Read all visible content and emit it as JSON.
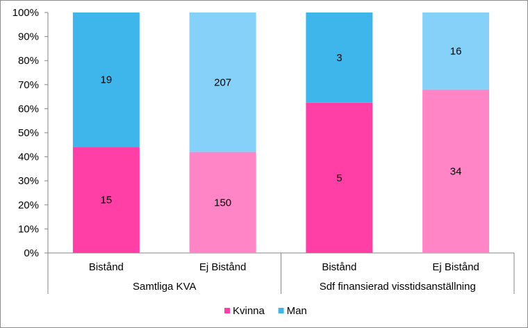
{
  "chart_data": {
    "type": "bar",
    "stacked": "percent",
    "yticks": [
      "0%",
      "10%",
      "20%",
      "30%",
      "40%",
      "50%",
      "60%",
      "70%",
      "80%",
      "90%",
      "100%"
    ],
    "ylim": [
      0,
      100
    ],
    "groups": [
      {
        "label": "Samtliga KVA",
        "categories": [
          {
            "label": "Bistånd",
            "kvinna": 15,
            "man": 19,
            "kvinna_color": "#ff3fa5",
            "man_color": "#3fb6eb"
          },
          {
            "label": "Ej Bistånd",
            "kvinna": 150,
            "man": 207,
            "kvinna_color": "#ff85c6",
            "man_color": "#85d1f9"
          }
        ]
      },
      {
        "label": "Sdf finansierad visstidsanställning",
        "categories": [
          {
            "label": "Bistånd",
            "kvinna": 5,
            "man": 3,
            "kvinna_color": "#ff3fa5",
            "man_color": "#3fb6eb"
          },
          {
            "label": "Ej Bistånd",
            "kvinna": 34,
            "man": 16,
            "kvinna_color": "#ff85c6",
            "man_color": "#85d1f9"
          }
        ]
      }
    ],
    "legend": {
      "position": "bottom",
      "items": [
        {
          "name": "Kvinna",
          "color": "#ff3fa5"
        },
        {
          "name": "Man",
          "color": "#3fb6eb"
        }
      ]
    },
    "grid": false
  }
}
